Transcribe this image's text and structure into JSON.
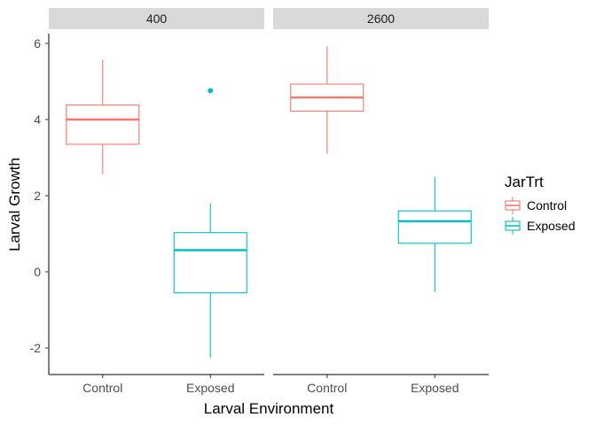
{
  "chart_data": {
    "type": "boxplot",
    "facet_variable": "",
    "facets": [
      "400",
      "2600"
    ],
    "categories": [
      "Control",
      "Exposed"
    ],
    "xlabel": "Larval Environment",
    "ylabel": "Larval Growth",
    "ylim": [
      -2.65,
      6.3
    ],
    "yticks": [
      -2,
      0,
      2,
      4,
      6
    ],
    "ytick_labels": [
      "-2",
      "0",
      "2",
      "4",
      "6"
    ],
    "legend": {
      "title": "JarTrt",
      "position": "right",
      "entries": [
        {
          "name": "Control",
          "color": "#F8766D"
        },
        {
          "name": "Exposed",
          "color": "#00BFC4"
        }
      ]
    },
    "boxes": [
      {
        "facet": "400",
        "category": "Control",
        "group": "Control",
        "whisker_low": 2.57,
        "q1": 3.35,
        "median": 4.0,
        "q3": 4.38,
        "whisker_high": 5.57,
        "outliers": []
      },
      {
        "facet": "400",
        "category": "Exposed",
        "group": "Exposed",
        "whisker_low": -2.25,
        "q1": -0.55,
        "median": 0.57,
        "q3": 1.03,
        "whisker_high": 1.8,
        "outliers": [
          4.76
        ]
      },
      {
        "facet": "2600",
        "category": "Control",
        "group": "Control",
        "whisker_low": 3.1,
        "q1": 4.22,
        "median": 4.58,
        "q3": 4.93,
        "whisker_high": 5.92,
        "outliers": []
      },
      {
        "facet": "2600",
        "category": "Exposed",
        "group": "Exposed",
        "whisker_low": -0.52,
        "q1": 0.75,
        "median": 1.33,
        "q3": 1.6,
        "whisker_high": 2.5,
        "outliers": []
      }
    ],
    "grid": false
  }
}
